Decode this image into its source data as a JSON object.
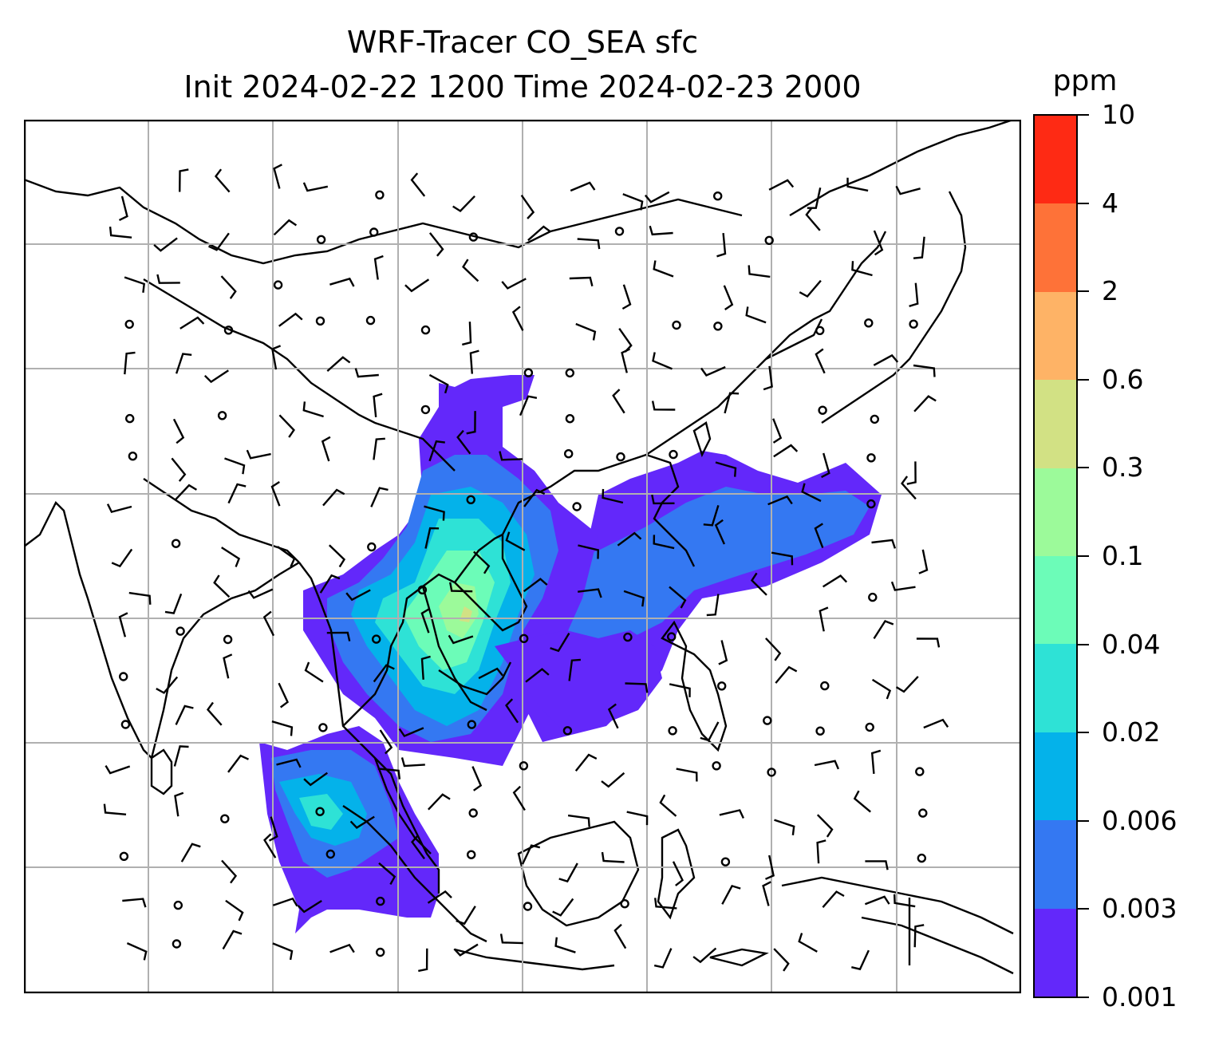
{
  "title": {
    "line1": "WRF-Tracer CO_SEA sfc",
    "line2": "Init 2024-02-22 1200 Time 2024-02-23 2000"
  },
  "colorbar": {
    "unit": "ppm",
    "ticks": [
      "0.001",
      "0.003",
      "0.006",
      "0.02",
      "0.04",
      "0.1",
      "0.3",
      "0.6",
      "2",
      "4",
      "10"
    ],
    "colors": [
      "#6328fa",
      "#3478f2",
      "#04b2ea",
      "#2ee2d6",
      "#6cfcb8",
      "#9cfa9a",
      "#d2e184",
      "#feb366",
      "#fe7238",
      "#fe2a14"
    ]
  },
  "map": {
    "grid": true,
    "land_outline_color": "#000000",
    "grid_color": "#b0b0b0"
  }
}
